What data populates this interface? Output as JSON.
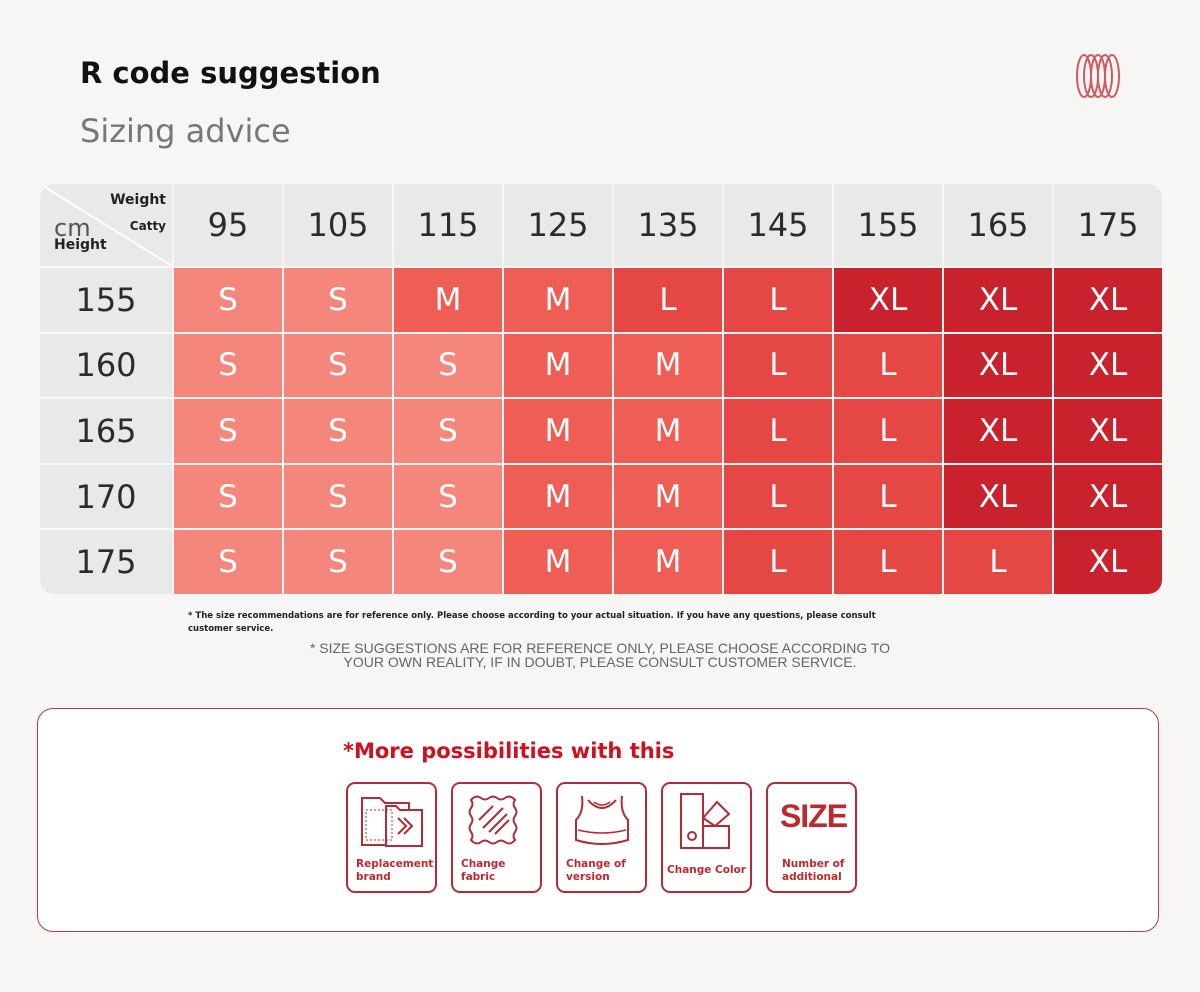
{
  "header": {
    "title": "R code suggestion",
    "subtitle": "Sizing advice"
  },
  "table": {
    "corner": {
      "weight": "Weight",
      "catty": "Catty",
      "cm": "cm",
      "height": "Height"
    },
    "weights": [
      "95",
      "105",
      "115",
      "125",
      "135",
      "145",
      "155",
      "165",
      "175"
    ],
    "rows": [
      {
        "height": "155",
        "sizes": [
          "S",
          "S",
          "M",
          "M",
          "L",
          "L",
          "XL",
          "XL",
          "XL"
        ]
      },
      {
        "height": "160",
        "sizes": [
          "S",
          "S",
          "S",
          "M",
          "M",
          "L",
          "L",
          "XL",
          "XL"
        ]
      },
      {
        "height": "165",
        "sizes": [
          "S",
          "S",
          "S",
          "M",
          "M",
          "L",
          "L",
          "XL",
          "XL"
        ]
      },
      {
        "height": "170",
        "sizes": [
          "S",
          "S",
          "S",
          "M",
          "M",
          "L",
          "L",
          "XL",
          "XL"
        ]
      },
      {
        "height": "175",
        "sizes": [
          "S",
          "S",
          "S",
          "M",
          "M",
          "L",
          "L",
          "L",
          "XL"
        ]
      }
    ],
    "colors": {
      "S": "#f4867b",
      "M": "#ef5e55",
      "L": "#e54744",
      "XL": "#c9222c"
    }
  },
  "notes": {
    "small": "* The size recommendations are for reference only. Please choose according to your actual situation. If you have any questions, please consult customer service.",
    "caps": "* SIZE SUGGESTIONS ARE FOR REFERENCE ONLY, PLEASE CHOOSE ACCORDING TO YOUR OWN REALITY, IF IN DOUBT, PLEASE CONSULT CUSTOMER SERVICE."
  },
  "more": {
    "title": "*More possibilities with this",
    "options": [
      {
        "label": "Replacement brand",
        "icon": "folder-arrow-icon"
      },
      {
        "label": "Change fabric",
        "icon": "fabric-icon"
      },
      {
        "label": "Change of version",
        "icon": "sports-bra-icon"
      },
      {
        "label": "Change Color",
        "icon": "color-swatch-icon"
      },
      {
        "label": "Number of additional",
        "icon": "size-text-icon",
        "icon_text": "SIZE"
      }
    ]
  }
}
